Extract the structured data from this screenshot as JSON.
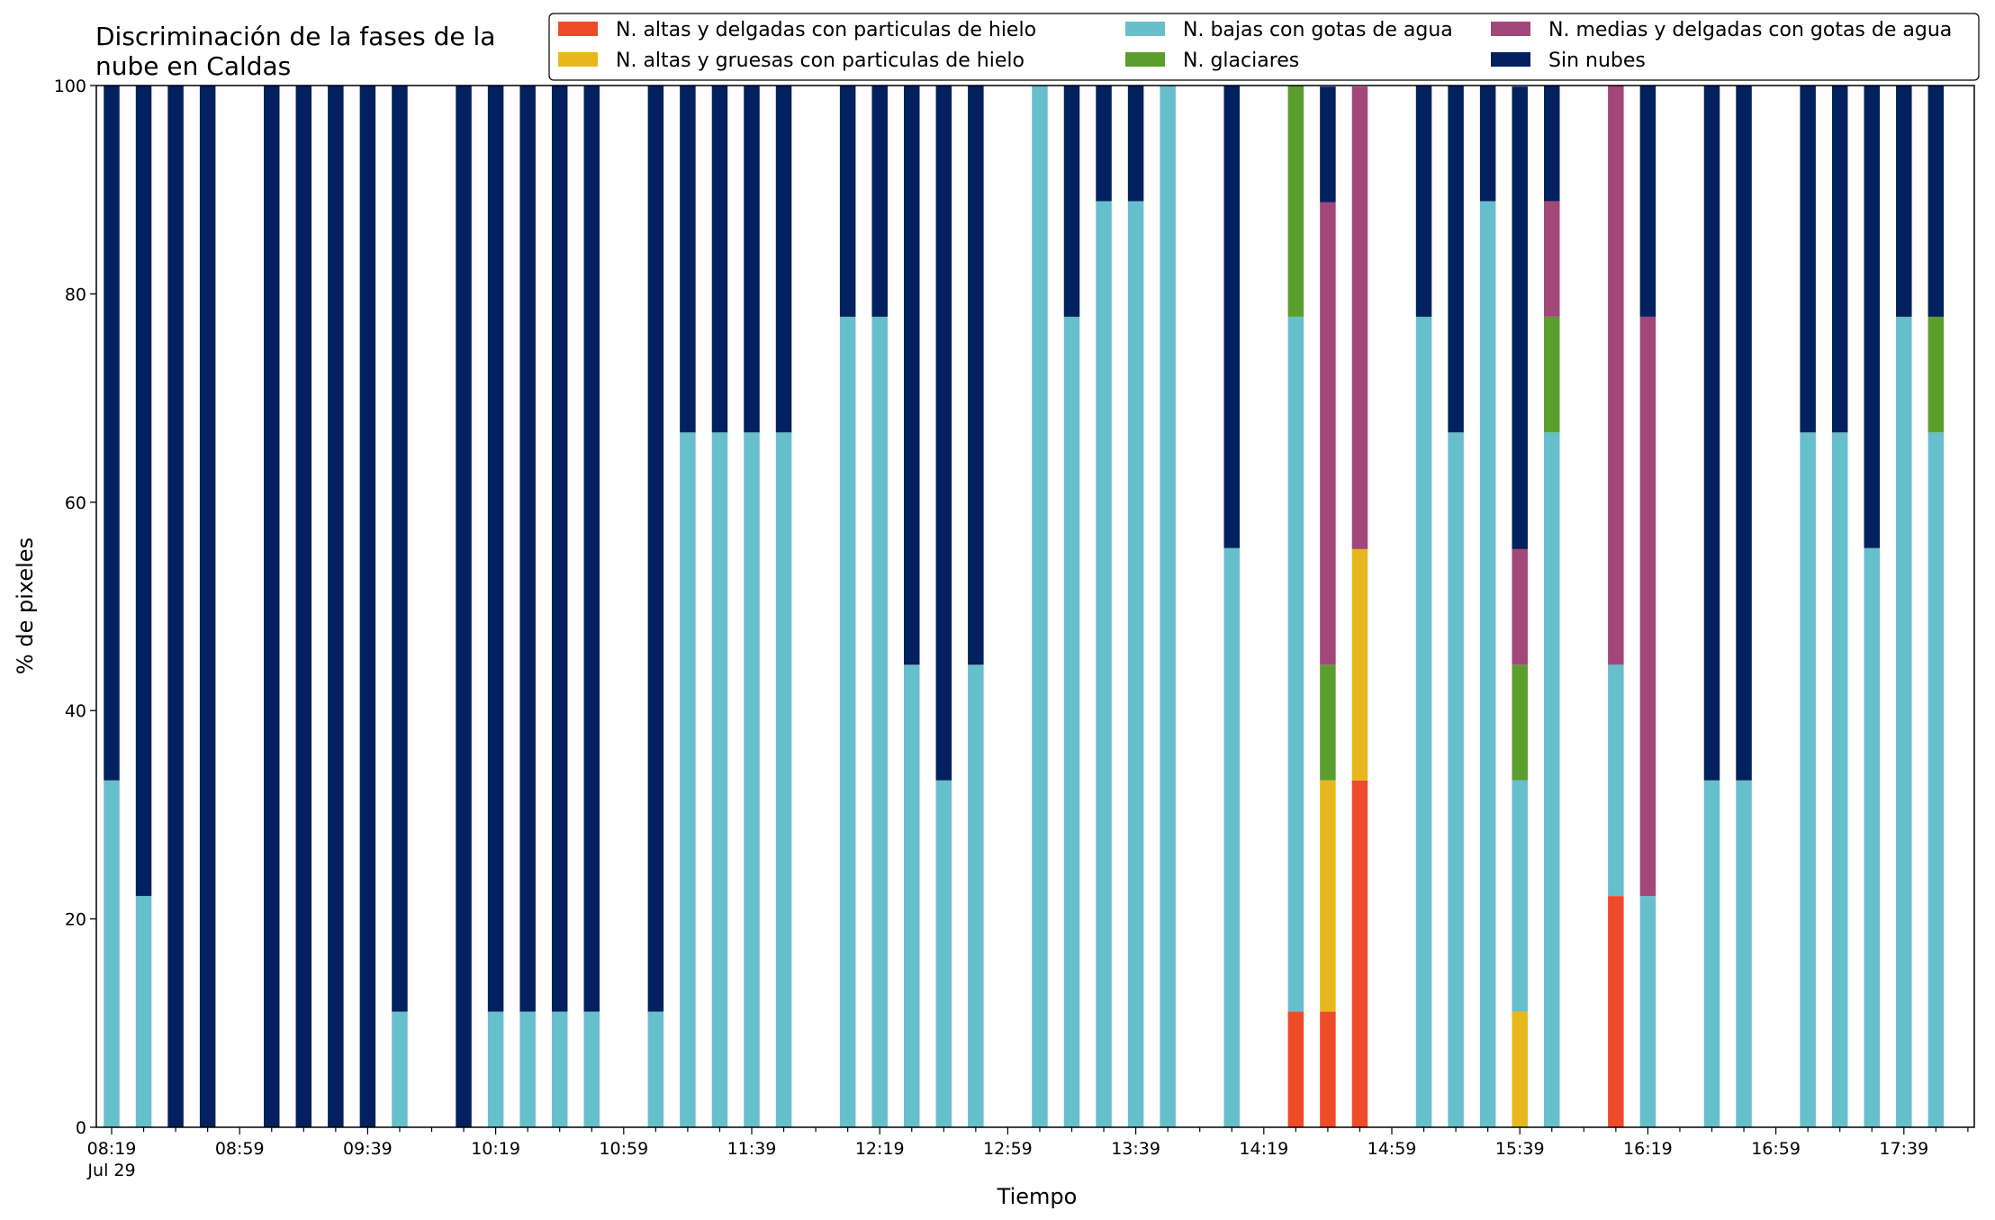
{
  "chart_data": {
    "type": "bar",
    "stacked": true,
    "title_lines": [
      "Discriminación de la fases de la",
      "nube en Caldas"
    ],
    "xlabel": "Tiempo",
    "ylabel": "% de pixeles",
    "ylim": [
      0,
      100
    ],
    "yticks": [
      0,
      20,
      40,
      60,
      80,
      100
    ],
    "x_ticks": [
      {
        "slot": 0,
        "label": "08:19",
        "sublabel": "Jul 29"
      },
      {
        "slot": 4,
        "label": "08:59"
      },
      {
        "slot": 8,
        "label": "09:39"
      },
      {
        "slot": 12,
        "label": "10:19"
      },
      {
        "slot": 16,
        "label": "10:59"
      },
      {
        "slot": 20,
        "label": "11:39"
      },
      {
        "slot": 24,
        "label": "12:19"
      },
      {
        "slot": 28,
        "label": "12:59"
      },
      {
        "slot": 32,
        "label": "13:39"
      },
      {
        "slot": 36,
        "label": "14:19"
      },
      {
        "slot": 40,
        "label": "14:59"
      },
      {
        "slot": 44,
        "label": "15:39"
      },
      {
        "slot": 48,
        "label": "16:19"
      },
      {
        "slot": 52,
        "label": "16:59"
      },
      {
        "slot": 56,
        "label": "17:39"
      }
    ],
    "x_slot_count": 59,
    "grid": false,
    "legend_position": "top-right",
    "legend_columns": 3,
    "series": [
      {
        "name": "N. altas y delgadas con particulas de hielo",
        "color": "#ee4b2b"
      },
      {
        "name": "N. altas y gruesas con particulas de hielo",
        "color": "#e6b81e"
      },
      {
        "name": "N. bajas con gotas de agua",
        "color": "#67bfcb"
      },
      {
        "name": "N. glaciares",
        "color": "#5c9e2d"
      },
      {
        "name": "N. medias y delgadas con gotas de agua",
        "color": "#a3467a"
      },
      {
        "name": "Sin nubes",
        "color": "#03205f"
      }
    ],
    "bars": [
      {
        "slot": 0,
        "values": [
          0,
          0,
          33.3,
          0,
          0,
          66.7
        ]
      },
      {
        "slot": 1,
        "values": [
          0,
          0,
          22.2,
          0,
          0,
          77.8
        ]
      },
      {
        "slot": 2,
        "values": [
          0,
          0,
          0,
          0,
          0,
          100
        ]
      },
      {
        "slot": 3,
        "values": [
          0,
          0,
          0,
          0,
          0,
          100
        ]
      },
      {
        "slot": 5,
        "values": [
          0,
          0,
          0,
          0,
          0,
          100
        ]
      },
      {
        "slot": 6,
        "values": [
          0,
          0,
          0,
          0,
          0,
          100
        ]
      },
      {
        "slot": 7,
        "values": [
          0,
          0,
          0,
          0,
          0,
          100
        ]
      },
      {
        "slot": 8,
        "values": [
          0,
          0,
          0,
          0,
          0,
          100
        ]
      },
      {
        "slot": 9,
        "values": [
          0,
          0,
          11.1,
          0,
          0,
          88.9
        ]
      },
      {
        "slot": 11,
        "values": [
          0,
          0,
          0,
          0,
          0,
          100
        ]
      },
      {
        "slot": 12,
        "values": [
          0,
          0,
          11.1,
          0,
          0,
          88.9
        ]
      },
      {
        "slot": 13,
        "values": [
          0,
          0,
          11.1,
          0,
          0,
          88.9
        ]
      },
      {
        "slot": 14,
        "values": [
          0,
          0,
          11.1,
          0,
          0,
          88.9
        ]
      },
      {
        "slot": 15,
        "values": [
          0,
          0,
          11.1,
          0,
          0,
          88.9
        ]
      },
      {
        "slot": 17,
        "values": [
          0,
          0,
          11.1,
          0,
          0,
          88.9
        ]
      },
      {
        "slot": 18,
        "values": [
          0,
          0,
          66.7,
          0,
          0,
          33.3
        ]
      },
      {
        "slot": 19,
        "values": [
          0,
          0,
          66.7,
          0,
          0,
          33.3
        ]
      },
      {
        "slot": 20,
        "values": [
          0,
          0,
          66.7,
          0,
          0,
          33.3
        ]
      },
      {
        "slot": 21,
        "values": [
          0,
          0,
          66.7,
          0,
          0,
          33.3
        ]
      },
      {
        "slot": 23,
        "values": [
          0,
          0,
          77.8,
          0,
          0,
          22.2
        ]
      },
      {
        "slot": 24,
        "values": [
          0,
          0,
          77.8,
          0,
          0,
          22.2
        ]
      },
      {
        "slot": 25,
        "values": [
          0,
          0,
          44.4,
          0,
          0,
          55.6
        ]
      },
      {
        "slot": 26,
        "values": [
          0,
          0,
          33.3,
          0,
          0,
          66.7
        ]
      },
      {
        "slot": 27,
        "values": [
          0,
          0,
          44.4,
          0,
          0,
          55.6
        ]
      },
      {
        "slot": 29,
        "values": [
          0,
          0,
          100,
          0,
          0,
          0
        ]
      },
      {
        "slot": 30,
        "values": [
          0,
          0,
          77.8,
          0,
          0,
          22.2
        ]
      },
      {
        "slot": 31,
        "values": [
          0,
          0,
          88.9,
          0,
          0,
          11.1
        ]
      },
      {
        "slot": 32,
        "values": [
          0,
          0,
          88.9,
          0,
          0,
          11.1
        ]
      },
      {
        "slot": 33,
        "values": [
          0,
          0,
          100,
          0,
          0,
          0
        ]
      },
      {
        "slot": 35,
        "values": [
          0,
          0,
          55.6,
          0,
          0,
          44.4
        ]
      },
      {
        "slot": 37,
        "values": [
          11.1,
          0,
          66.7,
          22.2,
          0,
          0
        ]
      },
      {
        "slot": 38,
        "values": [
          11.1,
          22.2,
          0,
          11.1,
          44.4,
          11.1
        ]
      },
      {
        "slot": 39,
        "values": [
          33.3,
          22.2,
          0,
          0,
          44.4,
          0
        ]
      },
      {
        "slot": 41,
        "values": [
          0,
          0,
          77.8,
          0,
          0,
          22.2
        ]
      },
      {
        "slot": 42,
        "values": [
          0,
          0,
          66.7,
          0,
          0,
          33.3
        ]
      },
      {
        "slot": 43,
        "values": [
          0,
          0,
          88.9,
          0,
          0,
          11.1
        ]
      },
      {
        "slot": 44,
        "values": [
          0,
          11.1,
          22.2,
          11.1,
          11.1,
          44.4
        ]
      },
      {
        "slot": 45,
        "values": [
          0,
          0,
          66.7,
          11.1,
          11.1,
          11.1
        ]
      },
      {
        "slot": 47,
        "values": [
          22.2,
          0,
          22.2,
          0,
          55.6,
          0
        ]
      },
      {
        "slot": 48,
        "values": [
          0,
          0,
          22.2,
          0,
          55.6,
          22.2
        ]
      },
      {
        "slot": 50,
        "values": [
          0,
          0,
          33.3,
          0,
          0,
          66.7
        ]
      },
      {
        "slot": 51,
        "values": [
          0,
          0,
          33.3,
          0,
          0,
          66.7
        ]
      },
      {
        "slot": 53,
        "values": [
          0,
          0,
          66.7,
          0,
          0,
          33.3
        ]
      },
      {
        "slot": 54,
        "values": [
          0,
          0,
          66.7,
          0,
          0,
          33.3
        ]
      },
      {
        "slot": 55,
        "values": [
          0,
          0,
          55.6,
          0,
          0,
          44.4
        ]
      },
      {
        "slot": 56,
        "values": [
          0,
          0,
          77.8,
          0,
          0,
          22.2
        ]
      },
      {
        "slot": 57,
        "values": [
          0,
          0,
          66.7,
          11.1,
          0,
          22.2
        ]
      }
    ]
  }
}
